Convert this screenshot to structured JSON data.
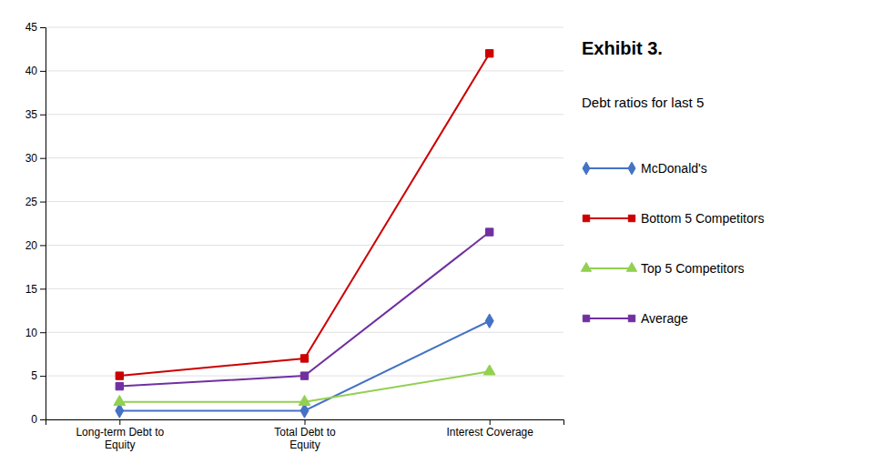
{
  "chart_data": {
    "type": "line",
    "title": "Exhibit 3.",
    "subtitle": "Debt ratios for last 5",
    "categories": [
      "Long-term Debt to\nEquity",
      "Total Debt to\nEquity",
      "Interest Coverage"
    ],
    "series": [
      {
        "name": "McDonald's",
        "values": [
          1.0,
          1.0,
          11.3
        ],
        "color": "#4472C4",
        "marker": "diamond"
      },
      {
        "name": "Bottom 5 Competitors",
        "values": [
          5.0,
          7.0,
          42.0
        ],
        "color": "#CC0000",
        "marker": "square"
      },
      {
        "name": "Top 5 Competitors",
        "values": [
          2.0,
          2.0,
          5.5
        ],
        "color": "#92D050",
        "marker": "triangle-up"
      },
      {
        "name": "Average",
        "values": [
          3.8,
          5.0,
          21.5
        ],
        "color": "#7030A0",
        "marker": "square"
      }
    ],
    "ylim": [
      0,
      45
    ],
    "yticks": [
      0,
      5,
      10,
      15,
      20,
      25,
      30,
      35,
      40,
      45
    ],
    "grid": true
  }
}
